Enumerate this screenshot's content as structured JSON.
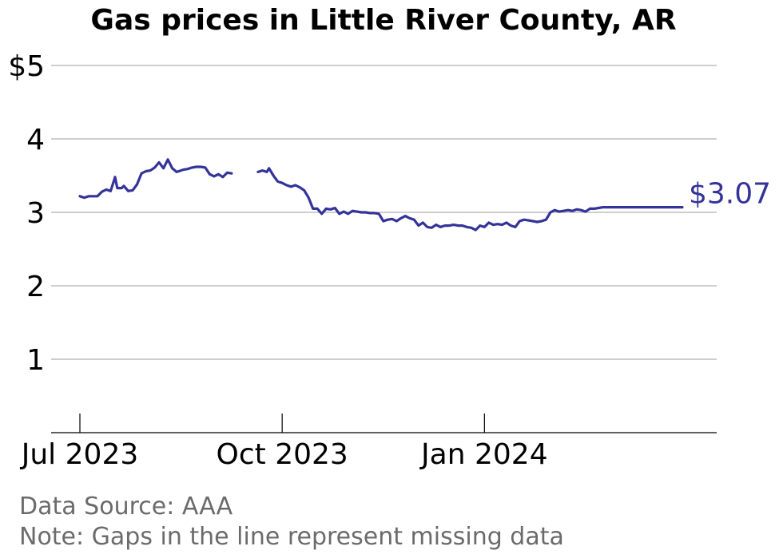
{
  "chart_data": {
    "type": "line",
    "title": "Gas prices in Little River County, AR",
    "xlabel": "",
    "ylabel": "",
    "x_range": [
      "2023-07-01",
      "2024-03-31"
    ],
    "ylim": [
      0,
      5
    ],
    "y_ticks": [
      1,
      2,
      3,
      4,
      5
    ],
    "y_tick_labels": [
      "1",
      "2",
      "3",
      "4",
      "$5"
    ],
    "x_ticks": [
      "2023-07-01",
      "2023-10-01",
      "2024-01-01"
    ],
    "x_tick_labels": [
      "Jul 2023",
      "Oct 2023",
      "Jan 2024"
    ],
    "grid": "horizontal",
    "legend": "none",
    "end_label": "$3.07",
    "series": [
      {
        "color": "#33339a",
        "segments": [
          {
            "x": [
              "2023-07-01",
              "2023-07-03",
              "2023-07-05",
              "2023-07-07",
              "2023-07-09",
              "2023-07-11",
              "2023-07-13",
              "2023-07-15",
              "2023-07-17",
              "2023-07-18",
              "2023-07-20",
              "2023-07-21",
              "2023-07-23",
              "2023-07-25",
              "2023-07-27",
              "2023-07-29",
              "2023-07-31",
              "2023-08-02",
              "2023-08-04",
              "2023-08-06",
              "2023-08-08",
              "2023-08-10",
              "2023-08-12",
              "2023-08-14",
              "2023-08-15",
              "2023-08-17",
              "2023-08-19",
              "2023-08-21",
              "2023-08-23",
              "2023-08-25",
              "2023-08-27",
              "2023-08-29",
              "2023-08-31",
              "2023-09-02",
              "2023-09-04",
              "2023-09-06",
              "2023-09-08"
            ],
            "y": [
              3.22,
              3.2,
              3.22,
              3.22,
              3.22,
              3.28,
              3.31,
              3.29,
              3.48,
              3.33,
              3.33,
              3.36,
              3.29,
              3.3,
              3.38,
              3.53,
              3.56,
              3.57,
              3.61,
              3.68,
              3.6,
              3.72,
              3.6,
              3.55,
              3.56,
              3.58,
              3.59,
              3.61,
              3.62,
              3.62,
              3.61,
              3.52,
              3.49,
              3.52,
              3.48,
              3.54,
              3.53
            ]
          },
          {
            "x": [
              "2023-09-20",
              "2023-09-22",
              "2023-09-24",
              "2023-09-25",
              "2023-09-27",
              "2023-09-29",
              "2023-10-01",
              "2023-10-03",
              "2023-10-05",
              "2023-10-07",
              "2023-10-09",
              "2023-10-11",
              "2023-10-13",
              "2023-10-15",
              "2023-10-17",
              "2023-10-19",
              "2023-10-21",
              "2023-10-23",
              "2023-10-25",
              "2023-10-27",
              "2023-10-29",
              "2023-10-31",
              "2023-11-02",
              "2023-11-04",
              "2023-11-06",
              "2023-11-08",
              "2023-11-10",
              "2023-11-12",
              "2023-11-14",
              "2023-11-16",
              "2023-11-18",
              "2023-11-20",
              "2023-11-22",
              "2023-11-24",
              "2023-11-26",
              "2023-11-28",
              "2023-11-30",
              "2023-12-02",
              "2023-12-04",
              "2023-12-06",
              "2023-12-08",
              "2023-12-10",
              "2023-12-12",
              "2023-12-14",
              "2023-12-16",
              "2023-12-18",
              "2023-12-20",
              "2023-12-22",
              "2023-12-24",
              "2023-12-26",
              "2023-12-28",
              "2023-12-30",
              "2024-01-01",
              "2024-01-03",
              "2024-01-05",
              "2024-01-07",
              "2024-01-09",
              "2024-01-11",
              "2024-01-13",
              "2024-01-15",
              "2024-01-17",
              "2024-01-19",
              "2024-01-21",
              "2024-01-23",
              "2024-01-25",
              "2024-01-27",
              "2024-01-29",
              "2024-01-31",
              "2024-02-02",
              "2024-02-04",
              "2024-02-06",
              "2024-02-08",
              "2024-02-10",
              "2024-02-12",
              "2024-02-14",
              "2024-02-16",
              "2024-02-18",
              "2024-02-20",
              "2024-02-22",
              "2024-02-24",
              "2024-02-26",
              "2024-02-28",
              "2024-03-01",
              "2024-03-03",
              "2024-03-05",
              "2024-03-07",
              "2024-03-09",
              "2024-03-11",
              "2024-03-13",
              "2024-03-15",
              "2024-03-17",
              "2024-03-19",
              "2024-03-21",
              "2024-03-23",
              "2024-03-25",
              "2024-03-27",
              "2024-03-29",
              "2024-03-31"
            ],
            "y": [
              3.55,
              3.57,
              3.55,
              3.6,
              3.5,
              3.42,
              3.4,
              3.37,
              3.35,
              3.37,
              3.34,
              3.3,
              3.2,
              3.05,
              3.05,
              2.98,
              3.05,
              3.04,
              3.06,
              2.98,
              3.01,
              2.98,
              3.02,
              3.01,
              3.0,
              3.0,
              2.99,
              2.99,
              2.98,
              2.88,
              2.9,
              2.91,
              2.88,
              2.92,
              2.95,
              2.92,
              2.9,
              2.82,
              2.86,
              2.8,
              2.79,
              2.83,
              2.8,
              2.82,
              2.82,
              2.83,
              2.82,
              2.82,
              2.8,
              2.79,
              2.76,
              2.82,
              2.8,
              2.86,
              2.83,
              2.84,
              2.83,
              2.86,
              2.82,
              2.8,
              2.88,
              2.9,
              2.89,
              2.88,
              2.87,
              2.88,
              2.9,
              3.0,
              3.03,
              3.01,
              3.02,
              3.03,
              3.02,
              3.04,
              3.03,
              3.01,
              3.05,
              3.05,
              3.06,
              3.07,
              3.07,
              3.07,
              3.07,
              3.07,
              3.07,
              3.07,
              3.07,
              3.07,
              3.07,
              3.07,
              3.07,
              3.07,
              3.07,
              3.07,
              3.07,
              3.07,
              3.07,
              3.07
            ]
          }
        ]
      }
    ]
  },
  "footer": {
    "source": "Data Source: AAA",
    "note": "Note: Gaps in the line represent missing data"
  }
}
